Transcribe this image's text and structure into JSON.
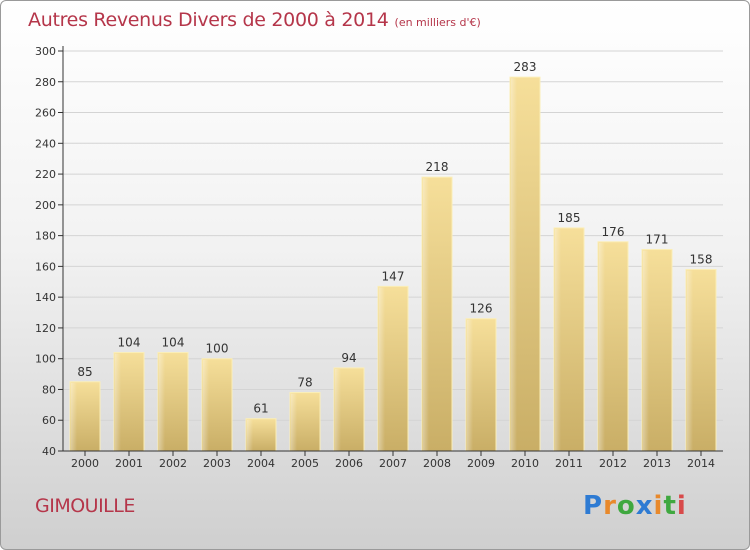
{
  "chart_data": {
    "type": "bar",
    "title": "Autres Revenus Divers de 2000 à 2014",
    "subtitle": "(en milliers d'€)",
    "categories": [
      "2000",
      "2001",
      "2002",
      "2003",
      "2004",
      "2005",
      "2006",
      "2007",
      "2008",
      "2009",
      "2010",
      "2011",
      "2012",
      "2013",
      "2014"
    ],
    "values": [
      85,
      104,
      104,
      100,
      61,
      78,
      94,
      147,
      218,
      126,
      283,
      185,
      176,
      171,
      158
    ],
    "ylim": [
      40,
      300
    ],
    "yticks": [
      40,
      60,
      80,
      100,
      120,
      140,
      160,
      180,
      200,
      220,
      240,
      260,
      280,
      300
    ],
    "xlabel": "",
    "ylabel": "",
    "grid": "horizontal",
    "bar_color": "#e8cf86"
  },
  "commune": "GIMOUILLE",
  "logo": {
    "text": "Proxiti",
    "letters": [
      {
        "char": "P",
        "color": "#2e7bd3"
      },
      {
        "char": "r",
        "color": "#e8892b"
      },
      {
        "char": "o",
        "color": "#3fa83f"
      },
      {
        "char": "x",
        "color": "#2e7bd3"
      },
      {
        "char": "i",
        "color": "#e8892b"
      },
      {
        "char": "t",
        "color": "#3fa83f"
      },
      {
        "char": "i",
        "color": "#d84a4a"
      }
    ]
  },
  "colors": {
    "title": "#b5364a",
    "axis": "#333333",
    "grid": "#d4d4d4"
  }
}
